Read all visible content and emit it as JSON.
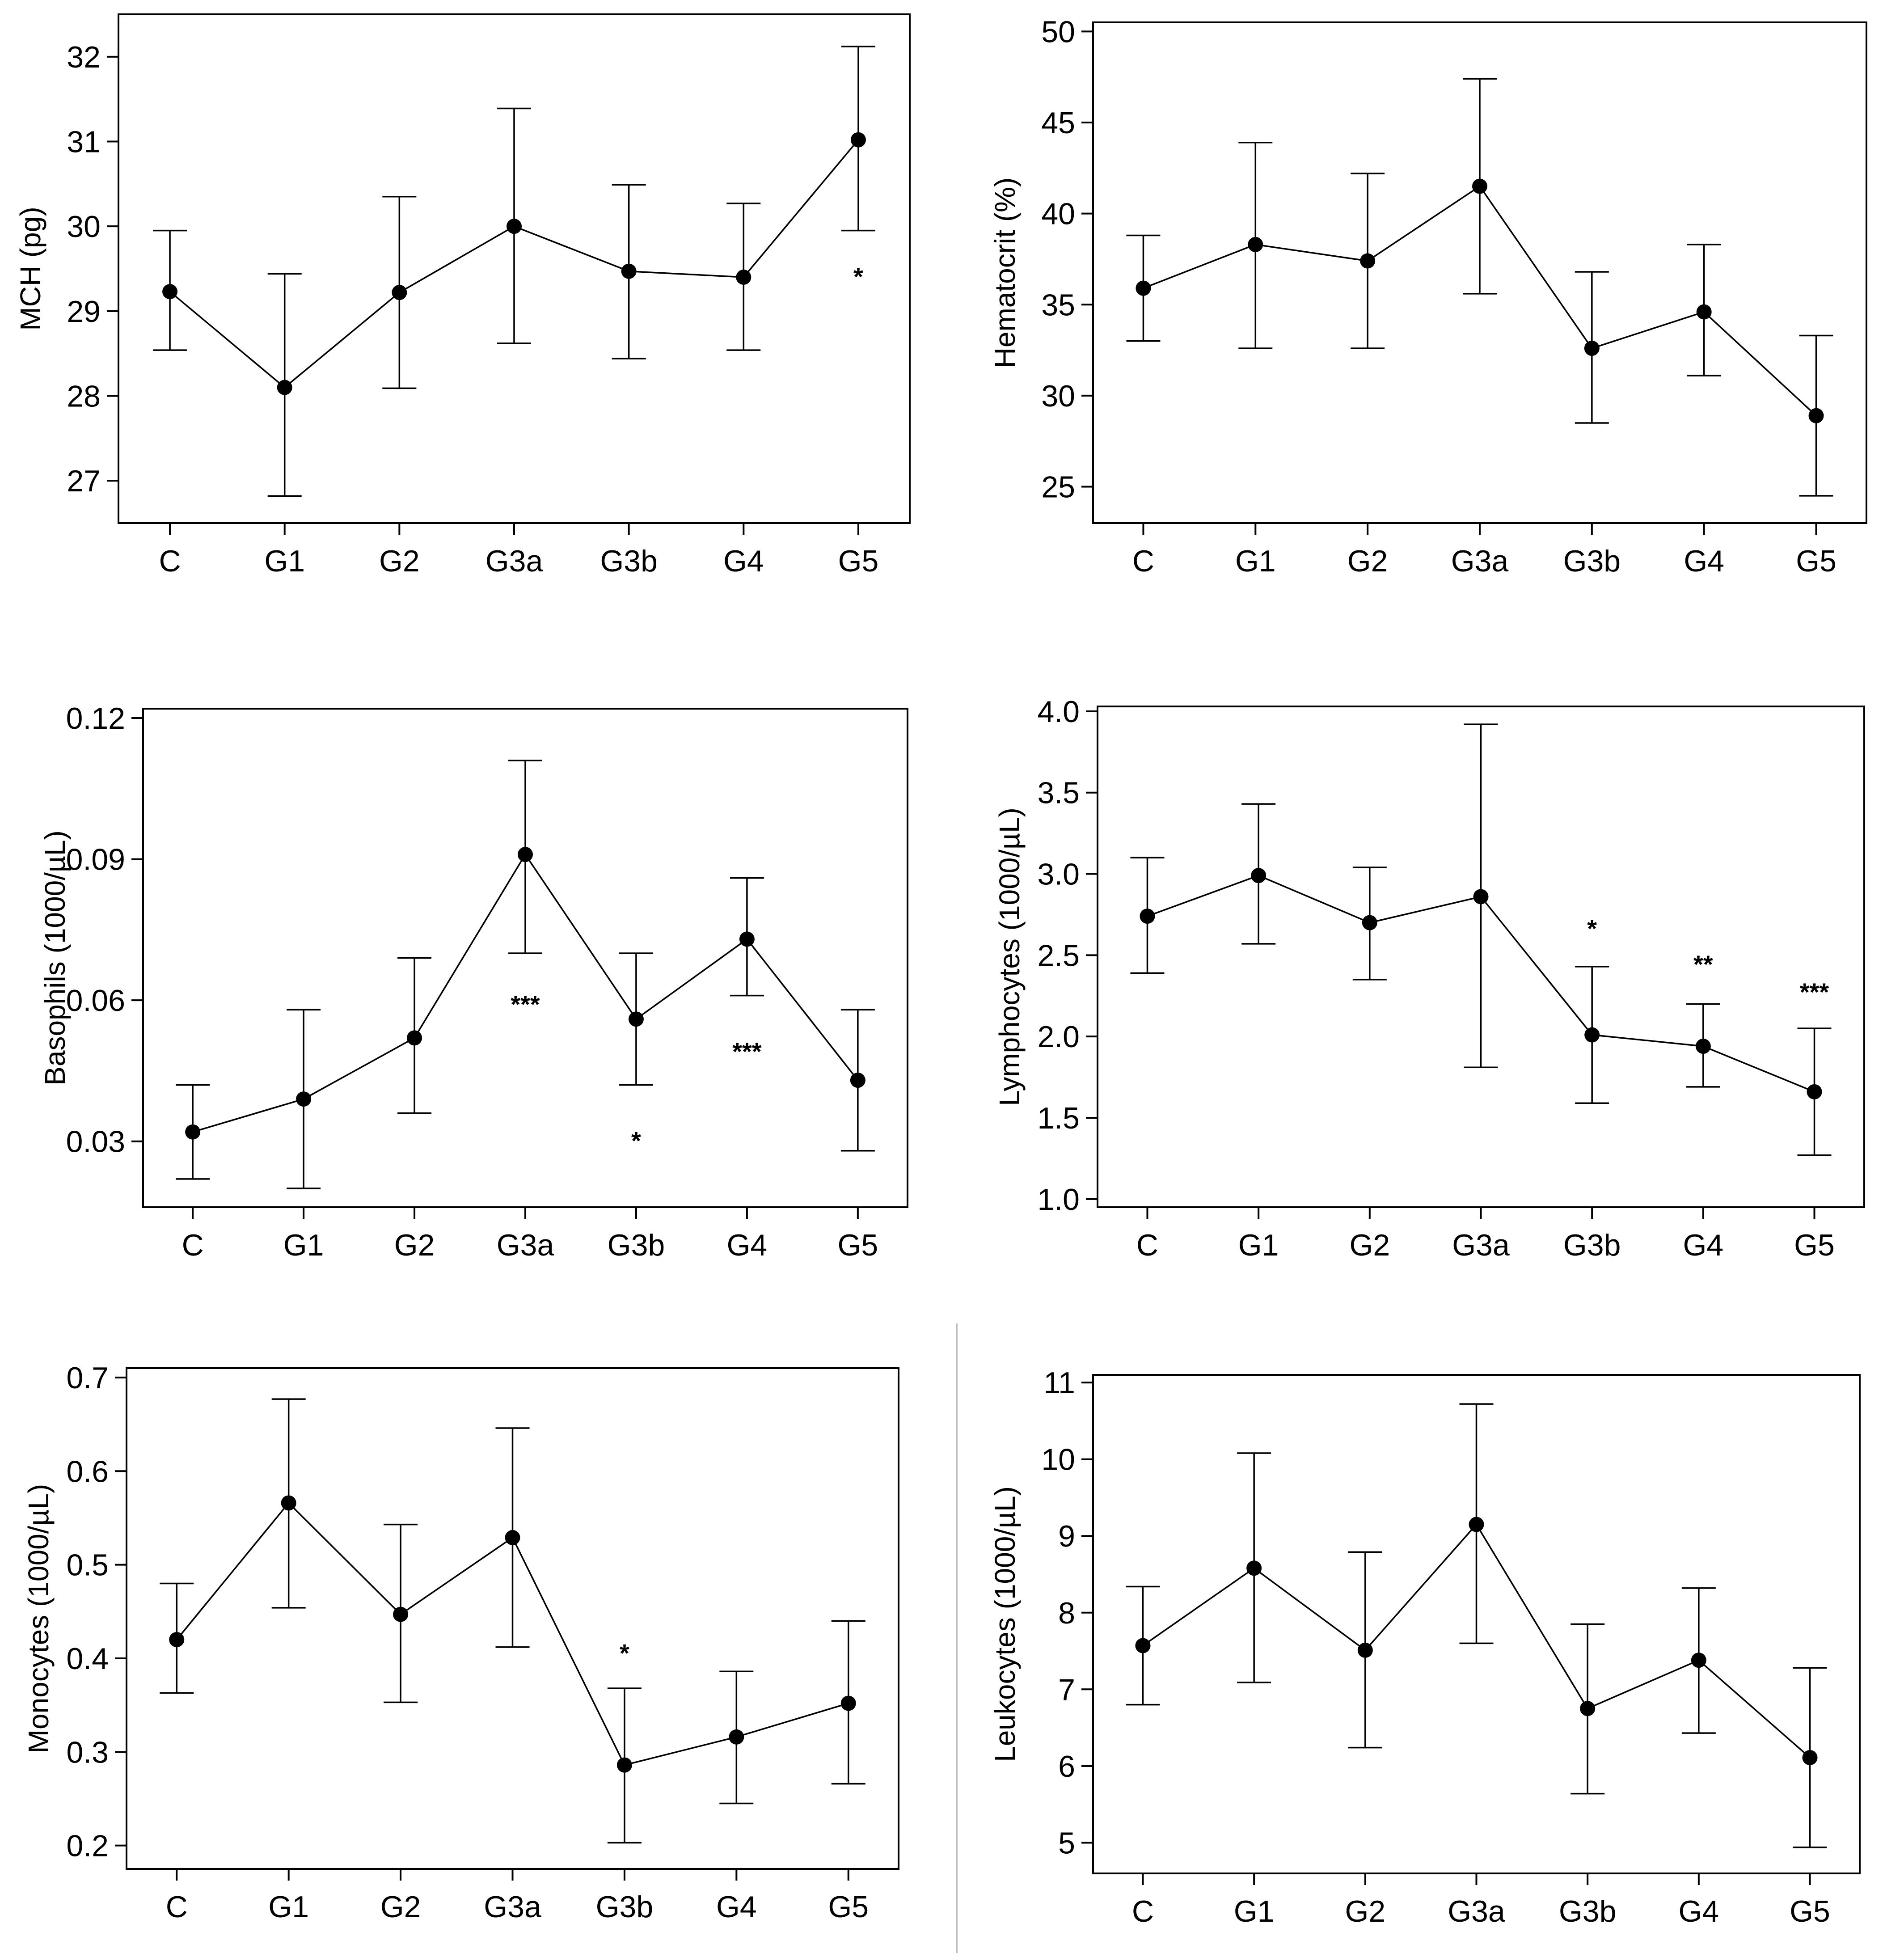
{
  "chart_data": [
    {
      "type": "line",
      "ylabel": "MCH (pg)",
      "categories": [
        "C",
        "G1",
        "G2",
        "G3a",
        "G3b",
        "G4",
        "G5"
      ],
      "values": [
        29.23,
        28.1,
        29.22,
        30.0,
        29.47,
        29.4,
        31.02
      ],
      "error_low": [
        28.54,
        26.82,
        28.09,
        28.62,
        28.44,
        28.54,
        29.95
      ],
      "error_high": [
        29.95,
        29.44,
        30.35,
        31.39,
        30.49,
        30.27,
        32.12
      ],
      "ylim": [
        26.5,
        32.5
      ],
      "yticks": [
        27,
        28,
        29,
        30,
        31,
        32
      ],
      "ytick_labels": [
        "27",
        "28",
        "29",
        "30",
        "31",
        "32"
      ],
      "annotations": [
        {
          "category": "G5",
          "text": "*",
          "y": 29.4
        }
      ]
    },
    {
      "type": "line",
      "ylabel": "Hematocrit (%)",
      "categories": [
        "C",
        "G1",
        "G2",
        "G3a",
        "G3b",
        "G4",
        "G5"
      ],
      "values": [
        35.9,
        38.3,
        37.4,
        41.5,
        32.6,
        34.6,
        28.9
      ],
      "error_low": [
        33.0,
        32.6,
        32.6,
        35.6,
        28.5,
        31.1,
        24.5
      ],
      "error_high": [
        38.8,
        43.9,
        42.2,
        47.4,
        36.8,
        38.3,
        33.3
      ],
      "ylim": [
        23,
        50.5
      ],
      "yticks": [
        25,
        30,
        35,
        40,
        45,
        50
      ],
      "ytick_labels": [
        "25",
        "30",
        "35",
        "40",
        "45",
        "50"
      ],
      "annotations": []
    },
    {
      "type": "line",
      "ylabel": "Basophils (1000/µL)",
      "categories": [
        "C",
        "G1",
        "G2",
        "G3a",
        "G3b",
        "G4",
        "G5"
      ],
      "values": [
        0.032,
        0.039,
        0.052,
        0.091,
        0.056,
        0.073,
        0.043
      ],
      "error_low": [
        0.022,
        0.02,
        0.036,
        0.07,
        0.042,
        0.061,
        0.028
      ],
      "error_high": [
        0.042,
        0.058,
        0.069,
        0.111,
        0.07,
        0.086,
        0.058
      ],
      "ylim": [
        0.016,
        0.122
      ],
      "yticks": [
        0.03,
        0.06,
        0.09,
        0.12
      ],
      "ytick_labels": [
        "0.03",
        "0.06",
        "0.09",
        "0.12"
      ],
      "annotations": [
        {
          "category": "G3a",
          "text": "***",
          "y": 0.059
        },
        {
          "category": "G3b",
          "text": "*",
          "y": 0.03
        },
        {
          "category": "G4",
          "text": "***",
          "y": 0.049
        }
      ]
    },
    {
      "type": "line",
      "ylabel": "Lymphocytes (1000/µL)",
      "categories": [
        "C",
        "G1",
        "G2",
        "G3a",
        "G3b",
        "G4",
        "G5"
      ],
      "values": [
        2.74,
        2.99,
        2.7,
        2.86,
        2.01,
        1.94,
        1.66
      ],
      "error_low": [
        2.39,
        2.57,
        2.35,
        1.81,
        1.59,
        1.69,
        1.27
      ],
      "error_high": [
        3.1,
        3.43,
        3.04,
        3.92,
        2.43,
        2.2,
        2.05
      ],
      "ylim": [
        0.95,
        4.03
      ],
      "yticks": [
        1.0,
        1.5,
        2.0,
        2.5,
        3.0,
        3.5,
        4.0
      ],
      "ytick_labels": [
        "1.0",
        "1.5",
        "2.0",
        "2.5",
        "3.0",
        "3.5",
        "4.0"
      ],
      "annotations": [
        {
          "category": "G3b",
          "text": "*",
          "y": 2.66
        },
        {
          "category": "G4",
          "text": "**",
          "y": 2.44
        },
        {
          "category": "G5",
          "text": "***",
          "y": 2.27
        }
      ]
    },
    {
      "type": "line",
      "ylabel": "Monocytes (1000/µL)",
      "categories": [
        "C",
        "G1",
        "G2",
        "G3a",
        "G3b",
        "G4",
        "G5"
      ],
      "values": [
        0.42,
        0.566,
        0.447,
        0.529,
        0.286,
        0.316,
        0.352
      ],
      "error_low": [
        0.363,
        0.454,
        0.353,
        0.412,
        0.203,
        0.245,
        0.266
      ],
      "error_high": [
        0.48,
        0.677,
        0.543,
        0.646,
        0.368,
        0.386,
        0.44
      ],
      "ylim": [
        0.175,
        0.71
      ],
      "yticks": [
        0.2,
        0.3,
        0.4,
        0.5,
        0.6,
        0.7
      ],
      "ytick_labels": [
        "0.2",
        "0.3",
        "0.4",
        "0.5",
        "0.6",
        "0.7"
      ],
      "annotations": [
        {
          "category": "G3b",
          "text": "*",
          "y": 0.405
        }
      ]
    },
    {
      "type": "line",
      "ylabel": "Leukocytes (1000/µL)",
      "categories": [
        "C",
        "G1",
        "G2",
        "G3a",
        "G3b",
        "G4",
        "G5"
      ],
      "values": [
        7.57,
        8.58,
        7.51,
        9.15,
        6.75,
        7.38,
        6.11
      ],
      "error_low": [
        6.8,
        7.09,
        6.24,
        7.6,
        5.64,
        6.43,
        4.94
      ],
      "error_high": [
        8.34,
        10.08,
        8.79,
        10.72,
        7.85,
        8.32,
        7.28
      ],
      "ylim": [
        4.6,
        11.1
      ],
      "yticks": [
        5,
        6,
        7,
        8,
        9,
        10,
        11
      ],
      "ytick_labels": [
        "5",
        "6",
        "7",
        "8",
        "9",
        "10",
        "11"
      ],
      "annotations": []
    }
  ],
  "colors": {
    "ink": "#000000",
    "divider": "#bdbdbd",
    "background": "#ffffff"
  }
}
